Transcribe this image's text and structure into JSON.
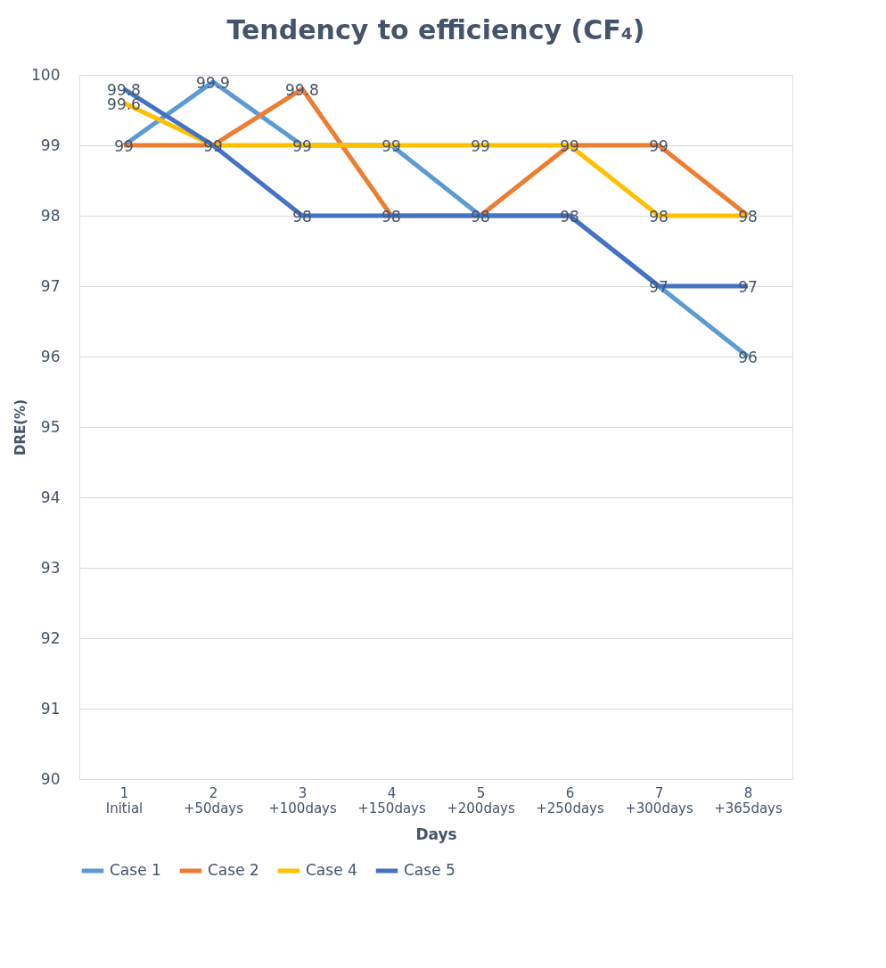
{
  "chart_data": {
    "type": "line",
    "title": "Tendency to efficiency (CF₄)",
    "xlabel": "Days",
    "ylabel": "DRE(%)",
    "categories": [
      "1\nInitial",
      "2\n+50days",
      "3\n+100days",
      "4\n+150days",
      "5\n+200days",
      "6\n+250days",
      "7\n+300days",
      "8\n+365days"
    ],
    "series": [
      {
        "name": "Case 1",
        "color": "#5b9bd5",
        "values": [
          99,
          99.9,
          99,
          99,
          98,
          98,
          97,
          96
        ],
        "value_labels": [
          "99",
          "99.9",
          "99",
          "99",
          "98",
          "98",
          "97",
          "96"
        ]
      },
      {
        "name": "Case 2",
        "color": "#ed7d31",
        "values": [
          99,
          99,
          99.8,
          98,
          98,
          99,
          99,
          98
        ],
        "value_labels": [
          null,
          "99",
          "99.8",
          "98",
          null,
          "99",
          "99",
          "98"
        ]
      },
      {
        "name": "Case 4",
        "color": "#ffc000",
        "values": [
          99.6,
          99,
          99,
          99,
          99,
          99,
          98,
          98
        ],
        "value_labels": [
          "99.6",
          null,
          null,
          null,
          "99",
          null,
          "98",
          null
        ]
      },
      {
        "name": "Case 5",
        "color": "#4472c4",
        "values": [
          99.8,
          99,
          98,
          98,
          98,
          98,
          97,
          97
        ],
        "value_labels": [
          "99.8",
          null,
          "98",
          null,
          null,
          null,
          null,
          "97"
        ]
      }
    ],
    "ylim": [
      90,
      100
    ],
    "yticks": [
      90,
      91,
      92,
      93,
      94,
      95,
      96,
      97,
      98,
      99,
      100
    ],
    "grid": "y",
    "legend": "bottom",
    "marker": "none",
    "line_style": "solid"
  }
}
